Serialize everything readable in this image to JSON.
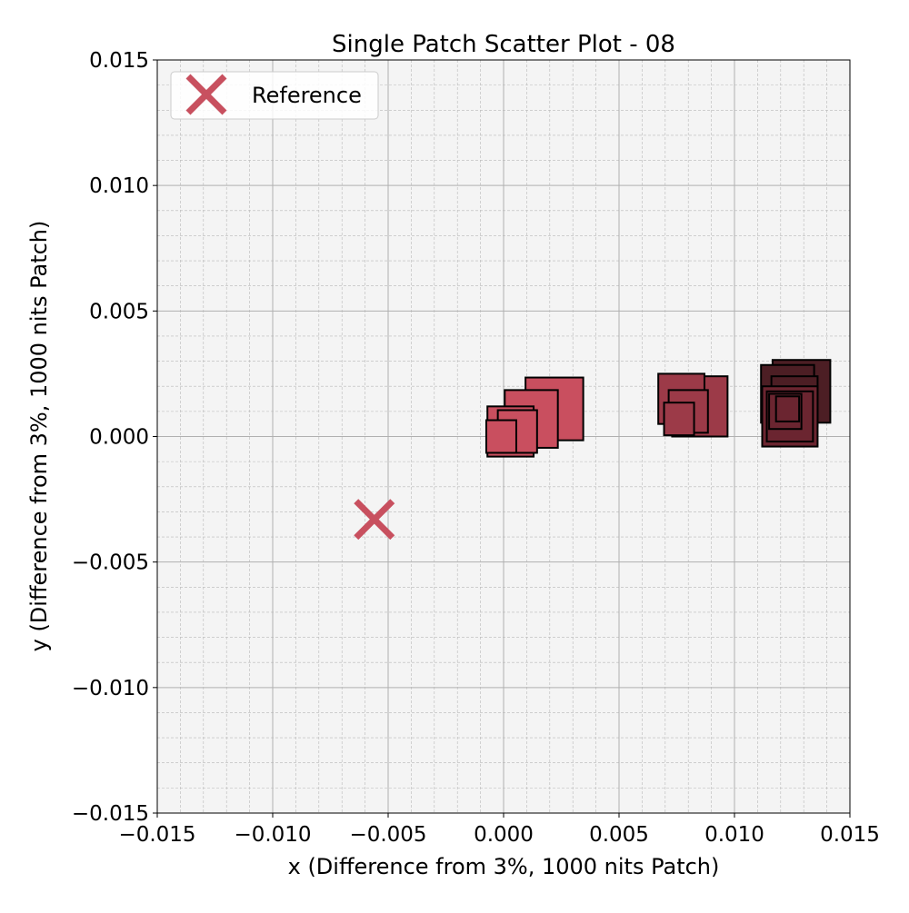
{
  "chart_data": {
    "type": "scatter",
    "title": "Single Patch Scatter Plot - 08",
    "xlabel": "x (Difference from 3%, 1000 nits Patch)",
    "ylabel": "y (Difference from 3%, 1000 nits Patch)",
    "xlim": [
      -0.015,
      0.015
    ],
    "ylim": [
      -0.015,
      0.015
    ],
    "x_ticks": [
      "−0.015",
      "−0.010",
      "−0.005",
      "0.000",
      "0.005",
      "0.010",
      "0.015"
    ],
    "y_ticks": [
      "−0.015",
      "−0.010",
      "−0.005",
      "0.000",
      "0.005",
      "0.010",
      "0.015"
    ],
    "grid": true,
    "minor_grid": true,
    "legend": {
      "placement": "top-left",
      "entries": [
        "Reference"
      ]
    },
    "reference": {
      "name": "Reference",
      "x": -0.0056,
      "y": -0.0033,
      "marker": "x",
      "color": "#c8505f"
    },
    "series": [
      {
        "marker": "square",
        "points": [
          {
            "x": 0.0022,
            "y": 0.0011,
            "size": 0.0025,
            "fill": "#c94f5f"
          },
          {
            "x": 0.0012,
            "y": 0.0007,
            "size": 0.0023,
            "fill": "#c94f5f"
          },
          {
            "x": 0.0003,
            "y": 0.0002,
            "size": 0.002,
            "fill": "#c94f5f"
          },
          {
            "x": 0.0006,
            "y": 0.0002,
            "size": 0.0017,
            "fill": "#c94f5f"
          },
          {
            "x": -0.0001,
            "y": 0.0,
            "size": 0.0013,
            "fill": "#c94f5f"
          },
          {
            "x": 0.0085,
            "y": 0.0012,
            "size": 0.0024,
            "fill": "#9c3a48"
          },
          {
            "x": 0.0077,
            "y": 0.0015,
            "size": 0.002,
            "fill": "#9c3a48"
          },
          {
            "x": 0.008,
            "y": 0.001,
            "size": 0.0017,
            "fill": "#9c3a48"
          },
          {
            "x": 0.0076,
            "y": 0.0007,
            "size": 0.0013,
            "fill": "#9c3a48"
          },
          {
            "x": 0.0119,
            "y": 0.002,
            "size": 0.0012,
            "fill": "#4c1e24"
          },
          {
            "x": 0.0129,
            "y": 0.0018,
            "size": 0.0025,
            "fill": "#4c1e24"
          },
          {
            "x": 0.0123,
            "y": 0.0017,
            "size": 0.0023,
            "fill": "#4c1e24"
          },
          {
            "x": 0.0126,
            "y": 0.0014,
            "size": 0.002,
            "fill": "#4c1e24"
          },
          {
            "x": 0.0124,
            "y": 0.0008,
            "size": 0.0024,
            "fill": "#6b2530"
          },
          {
            "x": 0.0124,
            "y": 0.0008,
            "size": 0.002,
            "fill": "#6b2530"
          },
          {
            "x": 0.0122,
            "y": 0.001,
            "size": 0.0014,
            "fill": "#6b2530"
          },
          {
            "x": 0.0123,
            "y": 0.0011,
            "size": 0.001,
            "fill": "#6b2530"
          }
        ]
      }
    ]
  }
}
